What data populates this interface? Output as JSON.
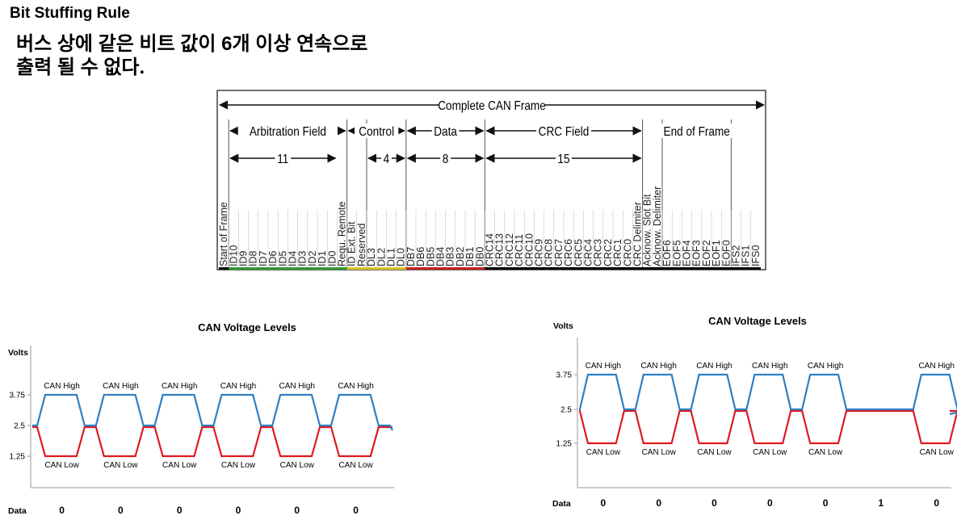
{
  "heading": "Bit Stuffing Rule",
  "description_lines": [
    "버스 상에 같은 비트 값이 6개 이상 연속으로",
    "출력 될 수 없다."
  ],
  "frame": {
    "complete_label": "Complete CAN Frame",
    "sections": [
      {
        "name": "Arbitration Field",
        "count": "11"
      },
      {
        "name": "Control",
        "count": "4"
      },
      {
        "name": "Data",
        "count": "8"
      },
      {
        "name": "CRC Field",
        "count": "15"
      },
      {
        "name": "End of Frame",
        "count": ""
      }
    ],
    "bits": [
      "Start of Frame",
      "ID10",
      "ID9",
      "ID8",
      "ID7",
      "ID6",
      "ID5",
      "ID4",
      "ID3",
      "ID2",
      "ID1",
      "ID0",
      "Requ. Remote",
      "ID Ext. Bit",
      "Reserved",
      "DL3",
      "DL2",
      "DL1",
      "DL0",
      "DB7",
      "DB6",
      "DB5",
      "DB4",
      "DB3",
      "DB2",
      "DB1",
      "DB0",
      "CRC14",
      "CRC13",
      "CRC12",
      "CRC11",
      "CRC10",
      "CRC9",
      "CRC8",
      "CRC7",
      "CRC6",
      "CRC5",
      "CRC4",
      "CRC3",
      "CRC2",
      "CRC1",
      "CRC0",
      "CRC Delimiter",
      "Acknow. Slot Bit",
      "Acknow. Delimiter",
      "EOF6",
      "EOF5",
      "EOF4",
      "EOF3",
      "EOF2",
      "EOF1",
      "EOF0",
      "IFS2",
      "IFS1",
      "IFS0"
    ],
    "underline_colors": {
      "arbitration": "#2e9a2e",
      "control": "#d8c41c",
      "data": "#c42020",
      "rest": "#000000"
    }
  },
  "charts": [
    {
      "title": "CAN Voltage Levels",
      "y_axis_label": "Volts",
      "x_axis_label": "Data",
      "y_ticks": [
        "3.75",
        "2.5",
        "1.25"
      ],
      "high_label": "CAN High",
      "low_label": "CAN Low",
      "bits": [
        "0",
        "0",
        "0",
        "0",
        "0",
        "0"
      ],
      "colors": {
        "high": "#2f7fc1",
        "low": "#e0191e"
      }
    },
    {
      "title": "CAN Voltage Levels",
      "y_axis_label": "Volts",
      "x_axis_label": "Data",
      "y_ticks": [
        "3.75",
        "2.5",
        "1.25"
      ],
      "high_label": "CAN High",
      "low_label": "CAN Low",
      "bits": [
        "0",
        "0",
        "0",
        "0",
        "0",
        "1",
        "0"
      ],
      "colors": {
        "high": "#2f7fc1",
        "low": "#e0191e"
      }
    }
  ]
}
